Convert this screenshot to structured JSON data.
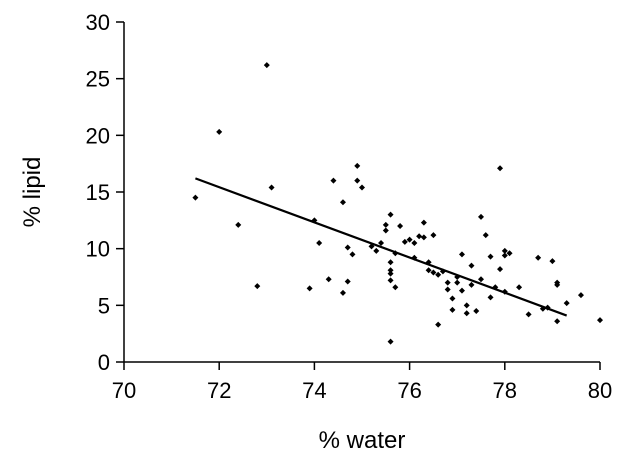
{
  "chart_data": {
    "type": "scatter",
    "title": "",
    "xlabel": "% water",
    "ylabel": "% lipid",
    "xlim": [
      70,
      80
    ],
    "ylim": [
      0,
      30
    ],
    "x_ticks": [
      70,
      72,
      74,
      76,
      78,
      80
    ],
    "y_ticks": [
      0,
      5,
      10,
      15,
      20,
      25,
      30
    ],
    "grid": false,
    "legend": "none",
    "marker_color": "#000000",
    "series": [
      {
        "points": [
          [
            71.5,
            14.5
          ],
          [
            72.0,
            20.3
          ],
          [
            72.4,
            12.1
          ],
          [
            72.8,
            6.7
          ],
          [
            73.0,
            26.2
          ],
          [
            73.1,
            15.4
          ],
          [
            73.9,
            6.5
          ],
          [
            74.0,
            12.5
          ],
          [
            74.1,
            10.5
          ],
          [
            74.3,
            7.3
          ],
          [
            74.4,
            16.0
          ],
          [
            74.6,
            6.1
          ],
          [
            74.6,
            14.1
          ],
          [
            74.7,
            7.1
          ],
          [
            74.7,
            10.1
          ],
          [
            74.8,
            9.5
          ],
          [
            74.9,
            17.3
          ],
          [
            74.9,
            16.0
          ],
          [
            75.0,
            15.4
          ],
          [
            75.2,
            10.2
          ],
          [
            75.3,
            9.8
          ],
          [
            75.4,
            10.5
          ],
          [
            75.5,
            11.6
          ],
          [
            75.5,
            12.1
          ],
          [
            75.6,
            13.0
          ],
          [
            75.6,
            8.8
          ],
          [
            75.6,
            8.1
          ],
          [
            75.6,
            7.8
          ],
          [
            75.6,
            7.2
          ],
          [
            75.7,
            6.6
          ],
          [
            75.6,
            1.8
          ],
          [
            75.7,
            9.6
          ],
          [
            75.8,
            12.0
          ],
          [
            75.9,
            10.6
          ],
          [
            76.0,
            10.8
          ],
          [
            76.1,
            9.2
          ],
          [
            76.1,
            10.5
          ],
          [
            76.2,
            11.1
          ],
          [
            76.3,
            12.3
          ],
          [
            76.3,
            11.0
          ],
          [
            76.4,
            8.8
          ],
          [
            76.4,
            8.1
          ],
          [
            76.5,
            11.2
          ],
          [
            76.5,
            7.9
          ],
          [
            76.6,
            7.7
          ],
          [
            76.6,
            3.3
          ],
          [
            76.7,
            8.0
          ],
          [
            76.8,
            7.0
          ],
          [
            76.8,
            6.4
          ],
          [
            76.9,
            5.6
          ],
          [
            76.9,
            4.6
          ],
          [
            77.0,
            7.5
          ],
          [
            77.0,
            7.0
          ],
          [
            77.1,
            9.5
          ],
          [
            77.1,
            6.3
          ],
          [
            77.2,
            5.0
          ],
          [
            77.2,
            4.3
          ],
          [
            77.3,
            6.8
          ],
          [
            77.3,
            8.5
          ],
          [
            77.4,
            4.5
          ],
          [
            77.5,
            7.3
          ],
          [
            77.5,
            12.8
          ],
          [
            77.6,
            11.2
          ],
          [
            77.7,
            9.3
          ],
          [
            77.7,
            5.7
          ],
          [
            77.8,
            6.6
          ],
          [
            77.9,
            8.2
          ],
          [
            77.9,
            17.1
          ],
          [
            78.0,
            9.4
          ],
          [
            78.0,
            9.8
          ],
          [
            78.0,
            6.2
          ],
          [
            78.1,
            9.6
          ],
          [
            78.3,
            6.6
          ],
          [
            78.5,
            4.2
          ],
          [
            78.7,
            9.2
          ],
          [
            78.8,
            4.7
          ],
          [
            78.9,
            4.8
          ],
          [
            79.0,
            8.9
          ],
          [
            79.1,
            6.8
          ],
          [
            79.1,
            7.0
          ],
          [
            79.1,
            3.6
          ],
          [
            79.3,
            5.2
          ],
          [
            79.6,
            5.9
          ],
          [
            80.0,
            3.7
          ]
        ]
      }
    ],
    "trendline": {
      "x": [
        71.5,
        79.3
      ],
      "y": [
        16.2,
        4.1
      ]
    }
  }
}
